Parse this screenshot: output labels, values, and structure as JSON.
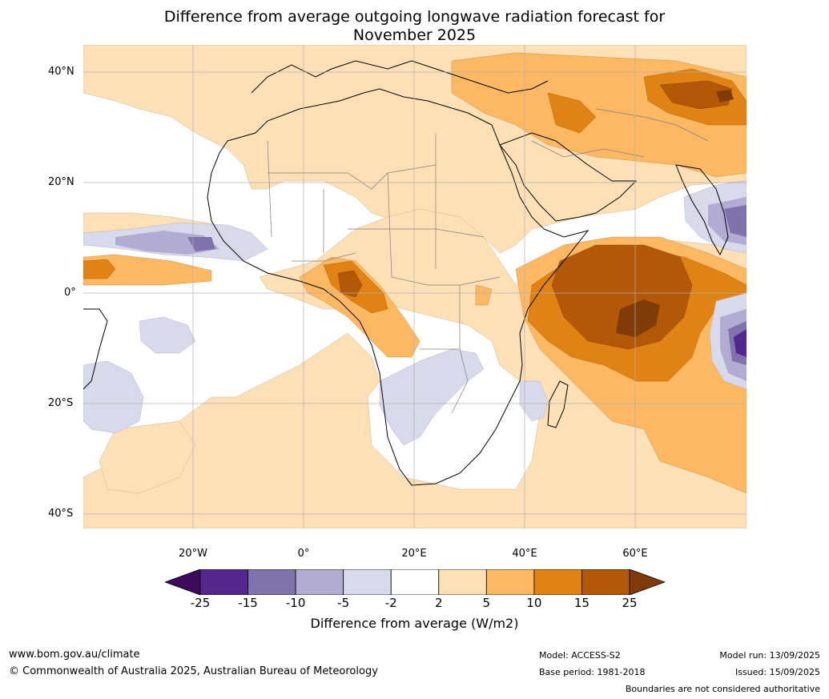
{
  "title": {
    "line1": "Difference from average outgoing longwave radiation forecast for",
    "line2": "November 2025"
  },
  "map": {
    "lat_labels": [
      "40°N",
      "20°N",
      "0°",
      "20°S",
      "40°S"
    ],
    "lon_labels": [
      "20°W",
      "0°",
      "20°E",
      "40°E",
      "60°E"
    ]
  },
  "legend": {
    "ticks": [
      "-25",
      "-15",
      "-10",
      "-5",
      "-2",
      "2",
      "5",
      "10",
      "15",
      "25"
    ],
    "colors": [
      "#3f0a5c",
      "#54278f",
      "#8073ac",
      "#b2abd2",
      "#d8daeb",
      "#ffffff",
      "#fee0b6",
      "#fdb863",
      "#e08214",
      "#b35806",
      "#7f3b08"
    ],
    "label": "Difference from average (W/m2)"
  },
  "footer": {
    "website": "www.bom.gov.au/climate",
    "copyright": "© Commonwealth of Australia 2025, Australian Bureau of Meteorology",
    "model": "Model: ACCESS-S2",
    "base_period": "Base period: 1981-2018",
    "model_run": "Model run: 13/09/2025",
    "issued": "Issued: 15/09/2025",
    "disclaimer": "Boundaries are not considered authoritative"
  }
}
